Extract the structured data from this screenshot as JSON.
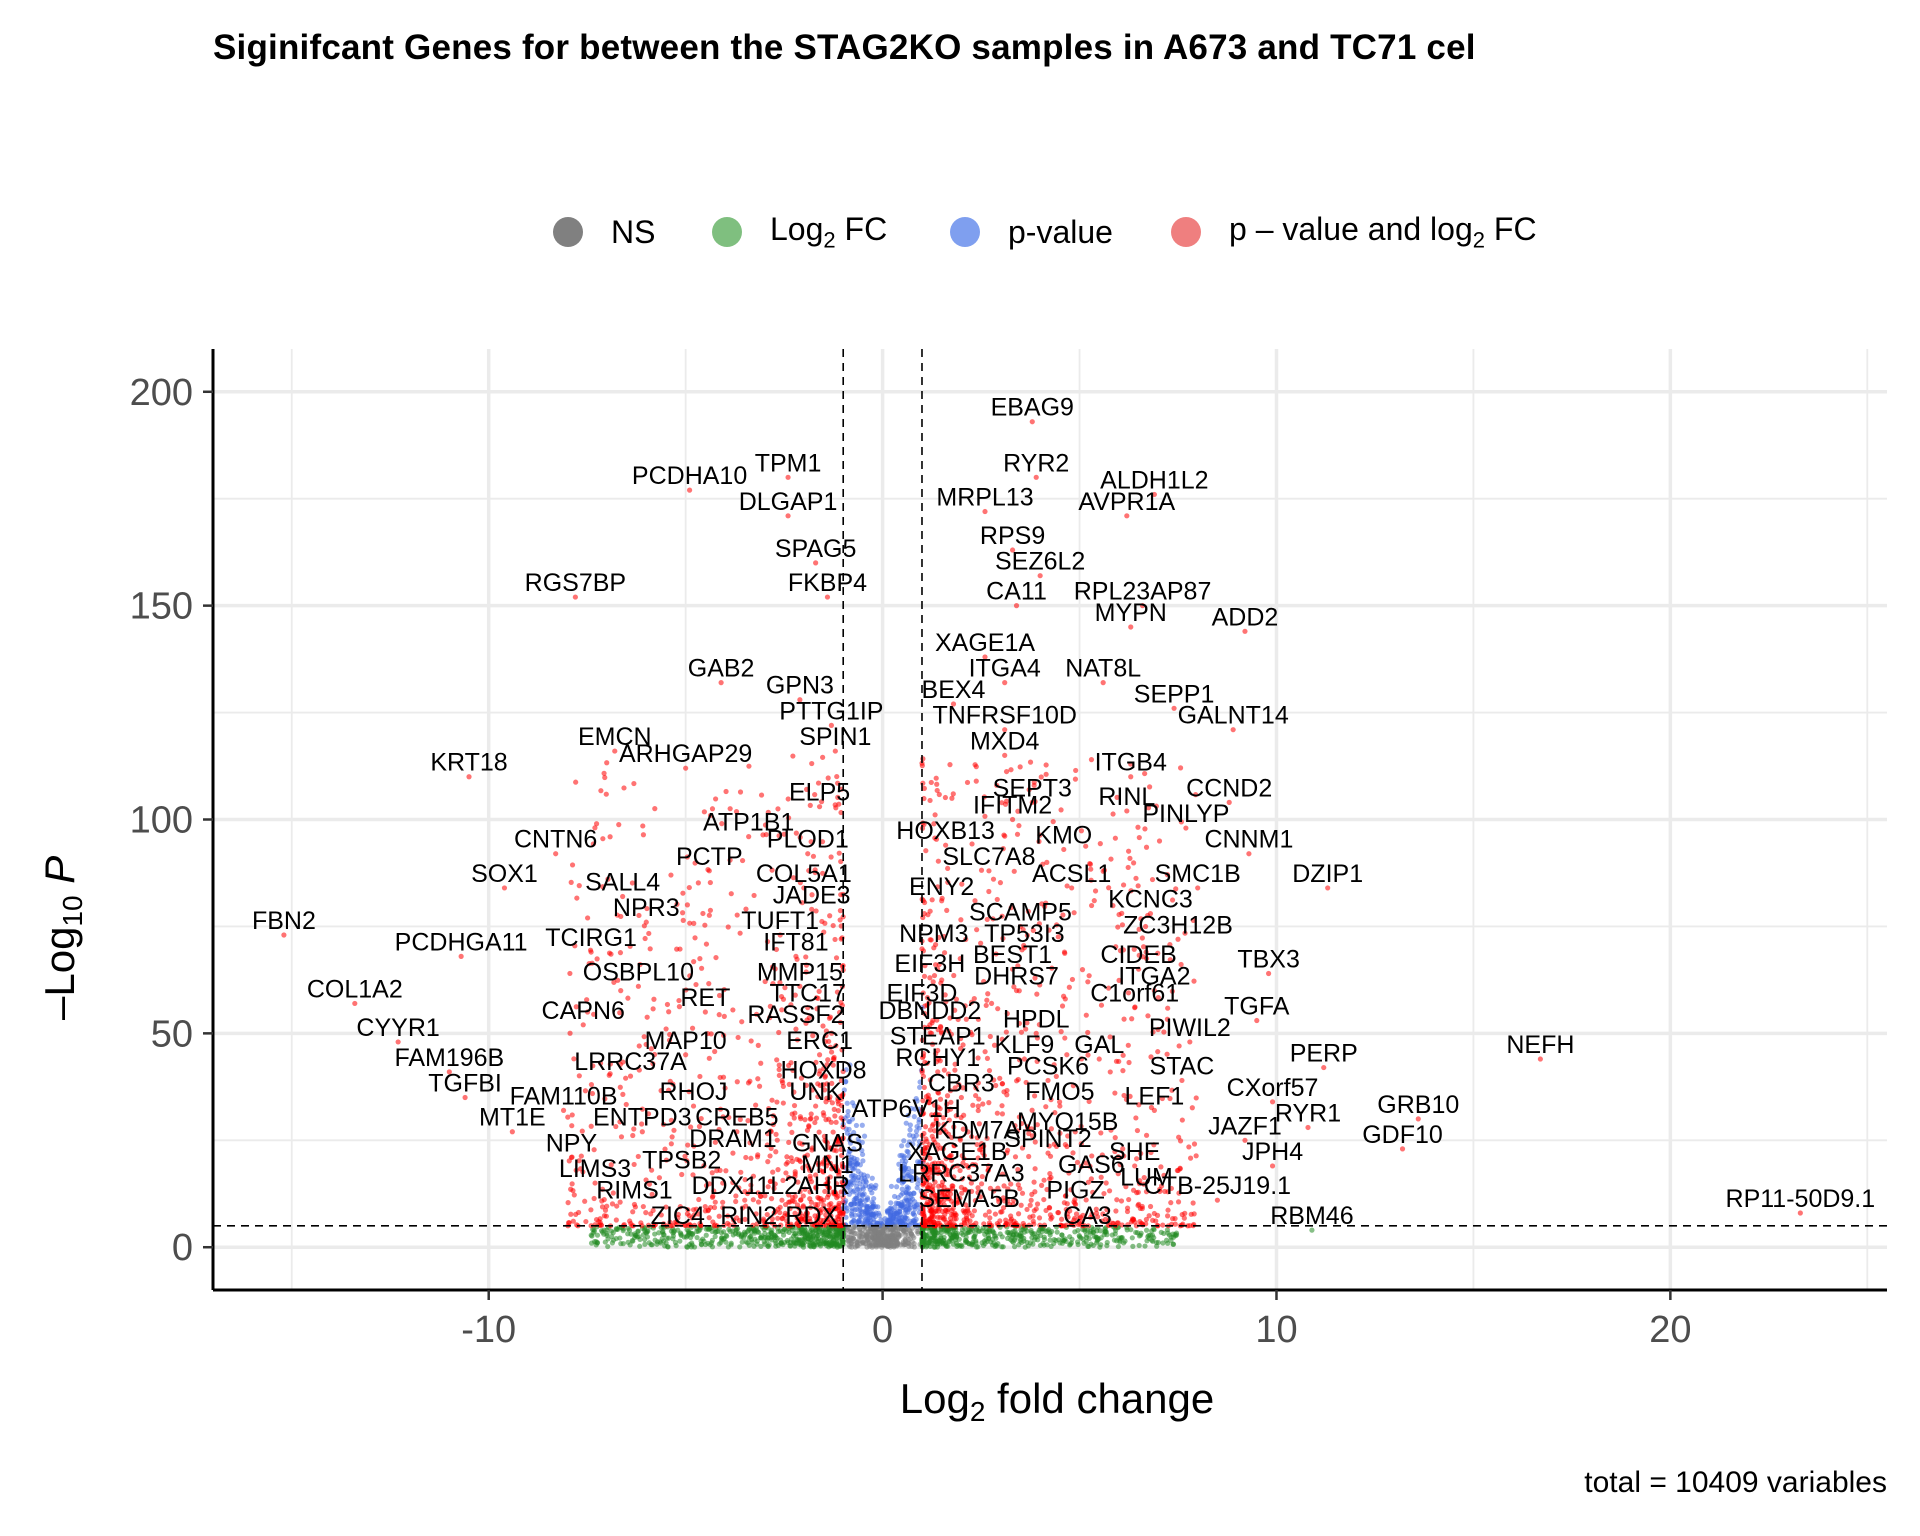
{
  "chart_data": {
    "type": "scatter",
    "title": "Siginifcant Genes for between the STAG2KO samples in A673 and TC71 cel",
    "xlabel_prefix": "Log",
    "xlabel_sub": "2",
    "xlabel_suffix": " fold change",
    "ylabel_prefix": "–Log",
    "ylabel_sub": "10",
    "ylabel_suffix": " P",
    "caption": "total = 10409 variables",
    "xlim": [
      -17,
      25.5
    ],
    "ylim": [
      -10,
      210
    ],
    "xticks": [
      -10,
      0,
      10,
      20
    ],
    "xtick_labels": [
      "-10",
      "0",
      "10",
      "20"
    ],
    "yticks": [
      0,
      50,
      100,
      150,
      200
    ],
    "ytick_labels": [
      "0",
      "50",
      "100",
      "150",
      "200"
    ],
    "grid": true,
    "fc_cutoff": 1,
    "p_cutoff": 5,
    "legend_position": "top",
    "legend": [
      {
        "label": "NS",
        "color": "#808080"
      },
      {
        "label_prefix": "Log",
        "label_sub": "2",
        "label_suffix": " FC",
        "color": "#7fbf7f"
      },
      {
        "label": "p-value",
        "color": "#7f9fef"
      },
      {
        "label_prefix": "p – value and log",
        "label_sub": "2",
        "label_suffix": " FC",
        "color": "#ef7f7f"
      }
    ],
    "colors": {
      "NS": "#808080",
      "FC": "#228b22",
      "P": "#4169e1",
      "FC_P": "#ff0000"
    },
    "labeled_genes": [
      {
        "gene": "EBAG9",
        "x": 3.8,
        "y": 193
      },
      {
        "gene": "PCDHA10",
        "x": -4.9,
        "y": 177
      },
      {
        "gene": "TPM1",
        "x": -2.4,
        "y": 180
      },
      {
        "gene": "DLGAP1",
        "x": -2.4,
        "y": 171
      },
      {
        "gene": "RYR2",
        "x": 3.9,
        "y": 180
      },
      {
        "gene": "ALDH1L2",
        "x": 6.9,
        "y": 176
      },
      {
        "gene": "MRPL13",
        "x": 2.6,
        "y": 172
      },
      {
        "gene": "AVPR1A",
        "x": 6.2,
        "y": 171
      },
      {
        "gene": "RPS9",
        "x": 3.3,
        "y": 163
      },
      {
        "gene": "SPAG5",
        "x": -1.7,
        "y": 160
      },
      {
        "gene": "SEZ6L2",
        "x": 4.0,
        "y": 157
      },
      {
        "gene": "RGS7BP",
        "x": -7.8,
        "y": 152
      },
      {
        "gene": "FKBP4",
        "x": -1.4,
        "y": 152
      },
      {
        "gene": "CA11",
        "x": 3.4,
        "y": 150
      },
      {
        "gene": "RPL23AP87",
        "x": 6.6,
        "y": 150
      },
      {
        "gene": "MYPN",
        "x": 6.3,
        "y": 145
      },
      {
        "gene": "ADD2",
        "x": 9.2,
        "y": 144
      },
      {
        "gene": "XAGE1A",
        "x": 2.6,
        "y": 138
      },
      {
        "gene": "NAT8L",
        "x": 5.6,
        "y": 132
      },
      {
        "gene": "ITGA4",
        "x": 3.1,
        "y": 132
      },
      {
        "gene": "GAB2",
        "x": -4.1,
        "y": 132
      },
      {
        "gene": "GPN3",
        "x": -2.1,
        "y": 128
      },
      {
        "gene": "BEX4",
        "x": 1.8,
        "y": 127
      },
      {
        "gene": "SEPP1",
        "x": 7.4,
        "y": 126
      },
      {
        "gene": "PTTG1IP",
        "x": -1.3,
        "y": 122
      },
      {
        "gene": "TNFRSF10D",
        "x": 3.1,
        "y": 121
      },
      {
        "gene": "GALNT14",
        "x": 8.9,
        "y": 121
      },
      {
        "gene": "EMCN",
        "x": -6.8,
        "y": 116
      },
      {
        "gene": "SPIN1",
        "x": -1.2,
        "y": 116
      },
      {
        "gene": "MXD4",
        "x": 3.1,
        "y": 115
      },
      {
        "gene": "ARHGAP29",
        "x": -5.0,
        "y": 112
      },
      {
        "gene": "KRT18",
        "x": -10.5,
        "y": 110
      },
      {
        "gene": "ITGB4",
        "x": 6.3,
        "y": 110
      },
      {
        "gene": "SEPT3",
        "x": 3.8,
        "y": 104
      },
      {
        "gene": "CCND2",
        "x": 8.8,
        "y": 104
      },
      {
        "gene": "RINL",
        "x": 6.2,
        "y": 102
      },
      {
        "gene": "ELP5",
        "x": -1.6,
        "y": 103
      },
      {
        "gene": "IFITM2",
        "x": 3.3,
        "y": 100
      },
      {
        "gene": "PINLYP",
        "x": 7.7,
        "y": 98
      },
      {
        "gene": "ATP1B1",
        "x": -3.4,
        "y": 96
      },
      {
        "gene": "HOXB13",
        "x": 1.6,
        "y": 94
      },
      {
        "gene": "KMO",
        "x": 4.6,
        "y": 93
      },
      {
        "gene": "PLOD1",
        "x": -1.9,
        "y": 92
      },
      {
        "gene": "CNTN6",
        "x": -8.3,
        "y": 92
      },
      {
        "gene": "CNNM1",
        "x": 9.3,
        "y": 92
      },
      {
        "gene": "SLC7A8",
        "x": 2.7,
        "y": 88
      },
      {
        "gene": "PCTP",
        "x": -4.4,
        "y": 88
      },
      {
        "gene": "ACSL1",
        "x": 4.8,
        "y": 84
      },
      {
        "gene": "SMC1B",
        "x": 8.0,
        "y": 84
      },
      {
        "gene": "COL5A1",
        "x": -2.0,
        "y": 84
      },
      {
        "gene": "SOX1",
        "x": -9.6,
        "y": 84
      },
      {
        "gene": "DZIP1",
        "x": 11.3,
        "y": 84
      },
      {
        "gene": "SALL4",
        "x": -6.6,
        "y": 82
      },
      {
        "gene": "ENY2",
        "x": 1.5,
        "y": 81
      },
      {
        "gene": "JADE3",
        "x": -1.8,
        "y": 79
      },
      {
        "gene": "KCNC3",
        "x": 6.8,
        "y": 78
      },
      {
        "gene": "SCAMP5",
        "x": 3.5,
        "y": 75
      },
      {
        "gene": "NPR3",
        "x": -6.0,
        "y": 76
      },
      {
        "gene": "ZC3H12B",
        "x": 7.5,
        "y": 72
      },
      {
        "gene": "TUFT1",
        "x": -2.6,
        "y": 73
      },
      {
        "gene": "NPM3",
        "x": 1.3,
        "y": 70
      },
      {
        "gene": "TP53I3",
        "x": 3.6,
        "y": 70
      },
      {
        "gene": "FBN2",
        "x": -15.2,
        "y": 73
      },
      {
        "gene": "TCIRG1",
        "x": -7.4,
        "y": 69
      },
      {
        "gene": "IFT81",
        "x": -2.2,
        "y": 68
      },
      {
        "gene": "PCDHGA11",
        "x": -10.7,
        "y": 68
      },
      {
        "gene": "CIDEB",
        "x": 6.5,
        "y": 65
      },
      {
        "gene": "BEST1",
        "x": 3.3,
        "y": 65
      },
      {
        "gene": "EIF3H",
        "x": 1.2,
        "y": 63
      },
      {
        "gene": "TBX3",
        "x": 9.8,
        "y": 64
      },
      {
        "gene": "MMP15",
        "x": -2.1,
        "y": 61
      },
      {
        "gene": "OSBPL10",
        "x": -6.2,
        "y": 61
      },
      {
        "gene": "DHRS7",
        "x": 3.4,
        "y": 60
      },
      {
        "gene": "ITGA2",
        "x": 6.9,
        "y": 60
      },
      {
        "gene": "EIF3D",
        "x": 1.0,
        "y": 56
      },
      {
        "gene": "TTC17",
        "x": -1.9,
        "y": 56
      },
      {
        "gene": "C1orf61",
        "x": 6.4,
        "y": 56
      },
      {
        "gene": "COL1A2",
        "x": -13.4,
        "y": 57
      },
      {
        "gene": "RET",
        "x": -4.5,
        "y": 55
      },
      {
        "gene": "TGFA",
        "x": 9.5,
        "y": 53
      },
      {
        "gene": "DBNDD2",
        "x": 1.2,
        "y": 52
      },
      {
        "gene": "CAPN6",
        "x": -7.6,
        "y": 52
      },
      {
        "gene": "RASSF2",
        "x": -2.2,
        "y": 51
      },
      {
        "gene": "HPDL",
        "x": 3.9,
        "y": 50
      },
      {
        "gene": "CYYR1",
        "x": -12.3,
        "y": 48
      },
      {
        "gene": "PIWIL2",
        "x": 7.8,
        "y": 48
      },
      {
        "gene": "STEAP1",
        "x": 1.4,
        "y": 46
      },
      {
        "gene": "MAP10",
        "x": -5.0,
        "y": 45
      },
      {
        "gene": "ERC1",
        "x": -1.6,
        "y": 45
      },
      {
        "gene": "KLF9",
        "x": 3.6,
        "y": 44
      },
      {
        "gene": "GAL",
        "x": 5.5,
        "y": 44
      },
      {
        "gene": "NEFH",
        "x": 16.7,
        "y": 44
      },
      {
        "gene": "PERP",
        "x": 11.2,
        "y": 42
      },
      {
        "gene": "FAM196B",
        "x": -11.0,
        "y": 41
      },
      {
        "gene": "RCHY1",
        "x": 1.4,
        "y": 41
      },
      {
        "gene": "LRRC37A",
        "x": -6.4,
        "y": 40
      },
      {
        "gene": "HOXD8",
        "x": -1.5,
        "y": 38
      },
      {
        "gene": "PCSK6",
        "x": 4.2,
        "y": 39
      },
      {
        "gene": "STAC",
        "x": 7.6,
        "y": 39
      },
      {
        "gene": "CBR3",
        "x": 2.0,
        "y": 35
      },
      {
        "gene": "TGFBI",
        "x": -10.6,
        "y": 35
      },
      {
        "gene": "CXorf57",
        "x": 9.9,
        "y": 34
      },
      {
        "gene": "UNK",
        "x": -1.7,
        "y": 33
      },
      {
        "gene": "RHOJ",
        "x": -4.8,
        "y": 33
      },
      {
        "gene": "FMO5",
        "x": 4.5,
        "y": 33
      },
      {
        "gene": "LEF1",
        "x": 6.9,
        "y": 32
      },
      {
        "gene": "FAM110B",
        "x": -8.1,
        "y": 32
      },
      {
        "gene": "GRB10",
        "x": 13.6,
        "y": 30
      },
      {
        "gene": "ATP6V1H",
        "x": 0.6,
        "y": 29
      },
      {
        "gene": "RYR1",
        "x": 10.8,
        "y": 28
      },
      {
        "gene": "CREB5",
        "x": -3.7,
        "y": 27
      },
      {
        "gene": "MT1E",
        "x": -9.4,
        "y": 27
      },
      {
        "gene": "ENTPD3",
        "x": -6.1,
        "y": 27
      },
      {
        "gene": "MYO15B",
        "x": 4.7,
        "y": 26
      },
      {
        "gene": "JAZF1",
        "x": 9.2,
        "y": 25
      },
      {
        "gene": "KDM7A",
        "x": 2.4,
        "y": 24
      },
      {
        "gene": "SPINT2",
        "x": 4.2,
        "y": 22
      },
      {
        "gene": "GDF10",
        "x": 13.2,
        "y": 23
      },
      {
        "gene": "DRAM1",
        "x": -3.8,
        "y": 22
      },
      {
        "gene": "GNAS",
        "x": -1.4,
        "y": 21
      },
      {
        "gene": "NPY",
        "x": -7.9,
        "y": 21
      },
      {
        "gene": "XAGE1B",
        "x": 1.9,
        "y": 19
      },
      {
        "gene": "SHE",
        "x": 6.4,
        "y": 19
      },
      {
        "gene": "JPH4",
        "x": 9.9,
        "y": 19
      },
      {
        "gene": "TPSB2",
        "x": -5.1,
        "y": 17
      },
      {
        "gene": "MN1",
        "x": -1.4,
        "y": 16
      },
      {
        "gene": "GAS6",
        "x": 5.3,
        "y": 16
      },
      {
        "gene": "LIMS3",
        "x": -7.3,
        "y": 15
      },
      {
        "gene": "LRRC37A3",
        "x": 2.0,
        "y": 14
      },
      {
        "gene": "LUM",
        "x": 6.7,
        "y": 13
      },
      {
        "gene": "AHR",
        "x": -1.5,
        "y": 11
      },
      {
        "gene": "DDX11L2",
        "x": -3.5,
        "y": 11
      },
      {
        "gene": "CTB-25J19.1",
        "x": 8.5,
        "y": 11
      },
      {
        "gene": "RIMS1",
        "x": -6.3,
        "y": 10
      },
      {
        "gene": "PIGZ",
        "x": 4.9,
        "y": 10
      },
      {
        "gene": "SEMA5B",
        "x": 2.2,
        "y": 8
      },
      {
        "gene": "RP11-50D9.1",
        "x": 23.3,
        "y": 8
      },
      {
        "gene": "ZIC4",
        "x": -5.2,
        "y": 4
      },
      {
        "gene": "RIN2",
        "x": -3.4,
        "y": 4
      },
      {
        "gene": "RDX",
        "x": -1.8,
        "y": 4
      },
      {
        "gene": "CA3",
        "x": 5.2,
        "y": 4
      },
      {
        "gene": "RBM46",
        "x": 10.9,
        "y": 4
      }
    ]
  }
}
